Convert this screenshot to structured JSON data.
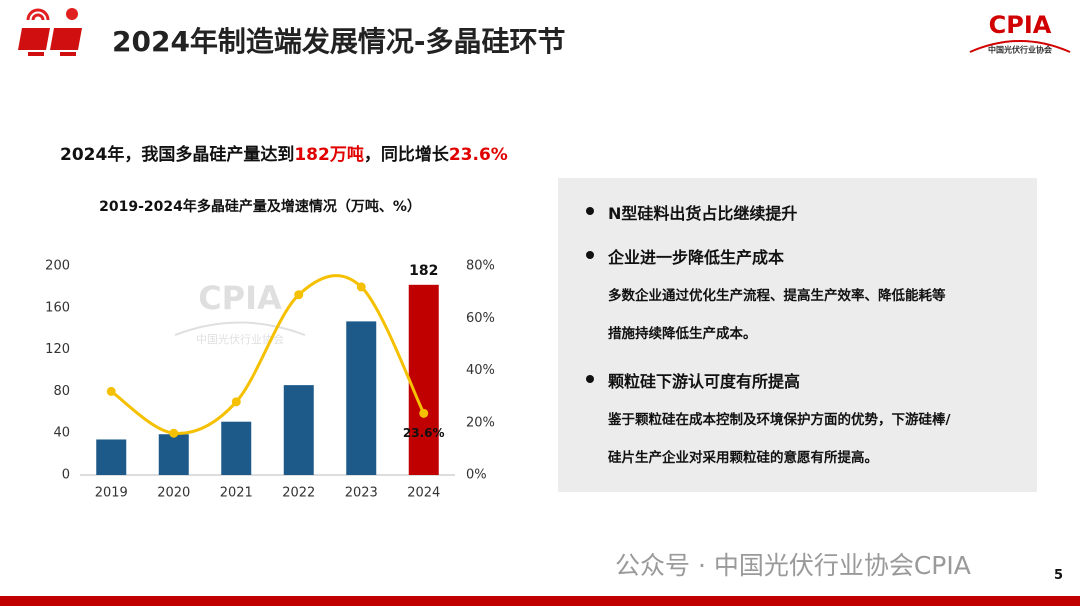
{
  "header": {
    "title": "2024年制造端发展情况-多晶硅环节"
  },
  "logo": {
    "name": "CPIA",
    "org": "中国光伏行业协会"
  },
  "headline": [
    "2024年，我国多晶硅产量达到",
    "182万吨",
    "，同比增长",
    "23.6%"
  ],
  "chart_data": {
    "type": "combo",
    "title": "2019-2024年多晶硅产量及增速情况（万吨、%）",
    "categories": [
      "2019",
      "2020",
      "2021",
      "2022",
      "2023",
      "2024"
    ],
    "series": [
      {
        "type": "bar",
        "colors": [
          "#1d5a8a",
          "#1d5a8a",
          "#1d5a8a",
          "#1d5a8a",
          "#1d5a8a",
          "#c00000"
        ],
        "values": [
          34,
          39,
          51,
          86,
          147,
          182
        ]
      },
      {
        "type": "line",
        "axis": "y2",
        "color": "#f5c000",
        "values": [
          32,
          16,
          28,
          69,
          72,
          23.6
        ],
        "value_labels": [
          null,
          null,
          null,
          null,
          null,
          "23.6%"
        ]
      }
    ],
    "ylim": [
      0,
      200
    ],
    "yticks": [
      0,
      40,
      80,
      120,
      160,
      200
    ],
    "y2lim": [
      0,
      80
    ],
    "y2ticks": [
      {
        "value": 0,
        "label": "0%"
      },
      {
        "value": 20,
        "label": "20%"
      },
      {
        "value": 40,
        "label": "40%"
      },
      {
        "value": 60,
        "label": "60%"
      },
      {
        "value": 80,
        "label": "80%"
      }
    ]
  },
  "panel": {
    "bullets": [
      {
        "heading": "N型硅料出货占比继续提升"
      },
      {
        "heading": "企业进一步降低生产成本",
        "lines": [
          "多数企业通过优化生产流程、提高生产效率、降低能耗等",
          "措施持续降低生产成本。"
        ]
      },
      {
        "heading": "颗粒硅下游认可度有所提高",
        "lines": [
          "鉴于颗粒硅在成本控制及环境保护方面的优势，下游硅棒/",
          "硅片生产企业对采用颗粒硅的意愿有所提高。"
        ]
      }
    ]
  },
  "footer": {
    "watermark": "公众号 · 中国光伏行业协会CPIA",
    "page": "5"
  }
}
